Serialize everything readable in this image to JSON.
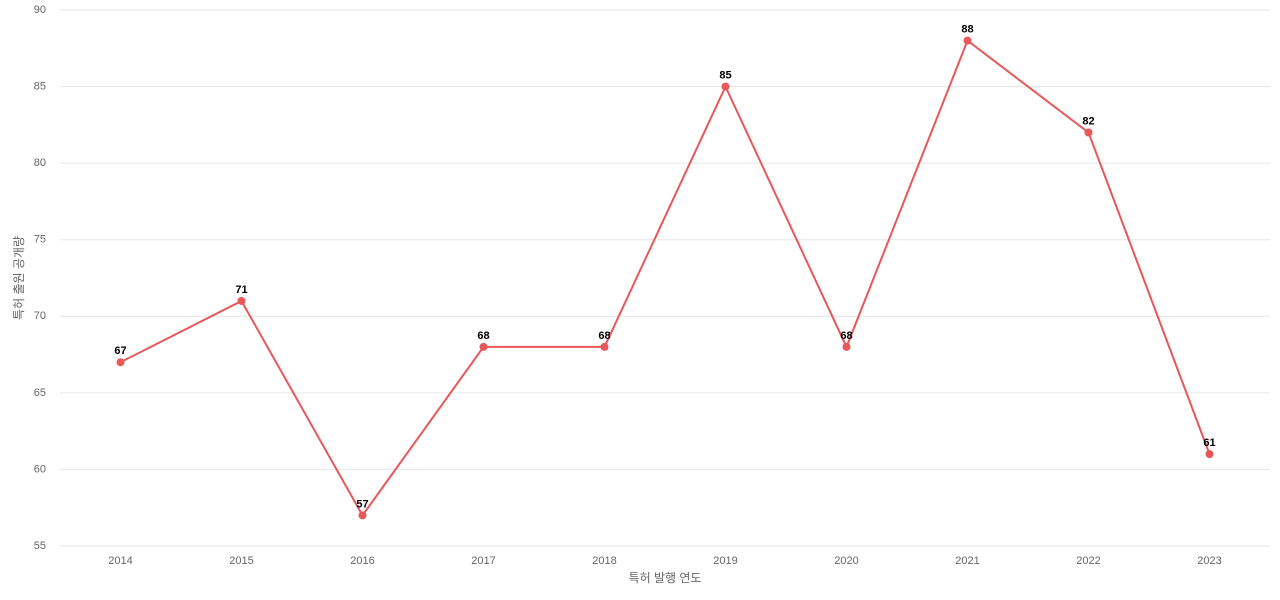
{
  "chart_data": {
    "type": "line",
    "x_label": "특허 발행 연도",
    "y_label": "특허 출원 공개량",
    "categories": [
      "2014",
      "2015",
      "2016",
      "2017",
      "2018",
      "2019",
      "2020",
      "2021",
      "2022",
      "2023"
    ],
    "values": [
      67,
      71,
      57,
      68,
      68,
      85,
      68,
      88,
      82,
      61
    ],
    "color": "#e8575a",
    "ylim": [
      55,
      90
    ],
    "yticks": [
      55,
      60,
      65,
      70,
      75,
      80,
      85,
      90
    ],
    "grid": true
  }
}
